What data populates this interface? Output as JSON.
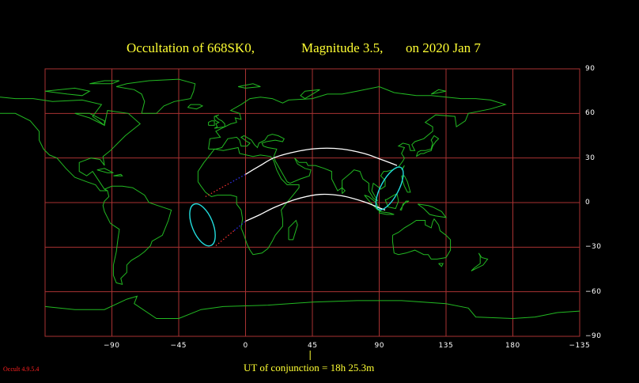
{
  "title": {
    "segment_1": "Occultation  of  668SK0,",
    "segment_2": "Magnitude 3.5,",
    "segment_3": "on  2020 Jan  7"
  },
  "axes": {
    "x_ticks": [
      "−90",
      "−45",
      "0",
      "45",
      "90",
      "135",
      "180",
      "−135"
    ],
    "y_ticks": [
      "90",
      "60",
      "30",
      "0",
      "−30",
      "−60",
      "−90"
    ]
  },
  "footer": {
    "conjunction_label": "UT of conjunction = 18h 25.3m",
    "version": "Occult 4.9.5.4"
  },
  "colors": {
    "background": "#000000",
    "title": "#ffff33",
    "grid": "#a83232",
    "coastline": "#22b822",
    "path_limits": "#ffffff",
    "ellipse": "#22dddd",
    "path_extension": "#ff3333",
    "path_extension_alt": "#3333ff",
    "version": "#ff2020"
  },
  "chart_data": {
    "type": "map",
    "projection": "equirectangular",
    "xlim": [
      -120,
      240
    ],
    "ylim": [
      -90,
      90
    ],
    "grid": true,
    "grid_lon_step": 45,
    "grid_lat_step": 30,
    "northern_limit": [
      [
        15,
        19
      ],
      [
        25,
        25
      ],
      [
        35,
        30.5
      ],
      [
        50,
        34.5
      ],
      [
        65,
        36.5
      ],
      [
        80,
        36
      ],
      [
        95,
        33
      ],
      [
        105,
        29.5
      ],
      [
        117,
        25
      ]
    ],
    "southern_limit": [
      [
        15,
        -12.5
      ],
      [
        25,
        -8
      ],
      [
        35,
        -3
      ],
      [
        50,
        2.5
      ],
      [
        65,
        5.5
      ],
      [
        80,
        4.5
      ],
      [
        95,
        0.5
      ],
      [
        105,
        -3.5
      ],
      [
        109,
        -5
      ]
    ],
    "northern_extension": [
      [
        -12,
        4
      ],
      [
        15,
        19
      ]
    ],
    "southern_extension": [
      [
        -5,
        -29
      ],
      [
        15,
        -12.5
      ]
    ],
    "ellipses": [
      {
        "center": [
          -14,
          -15
        ],
        "semi_axis_lon": 7,
        "semi_axis_lat": 15,
        "rotation_deg": -22
      },
      {
        "center": [
          112,
          9.5
        ],
        "semi_axis_lon": 6,
        "semi_axis_lat": 16,
        "rotation_deg": 28
      }
    ],
    "conjunction_marker_lon": 58.5
  }
}
